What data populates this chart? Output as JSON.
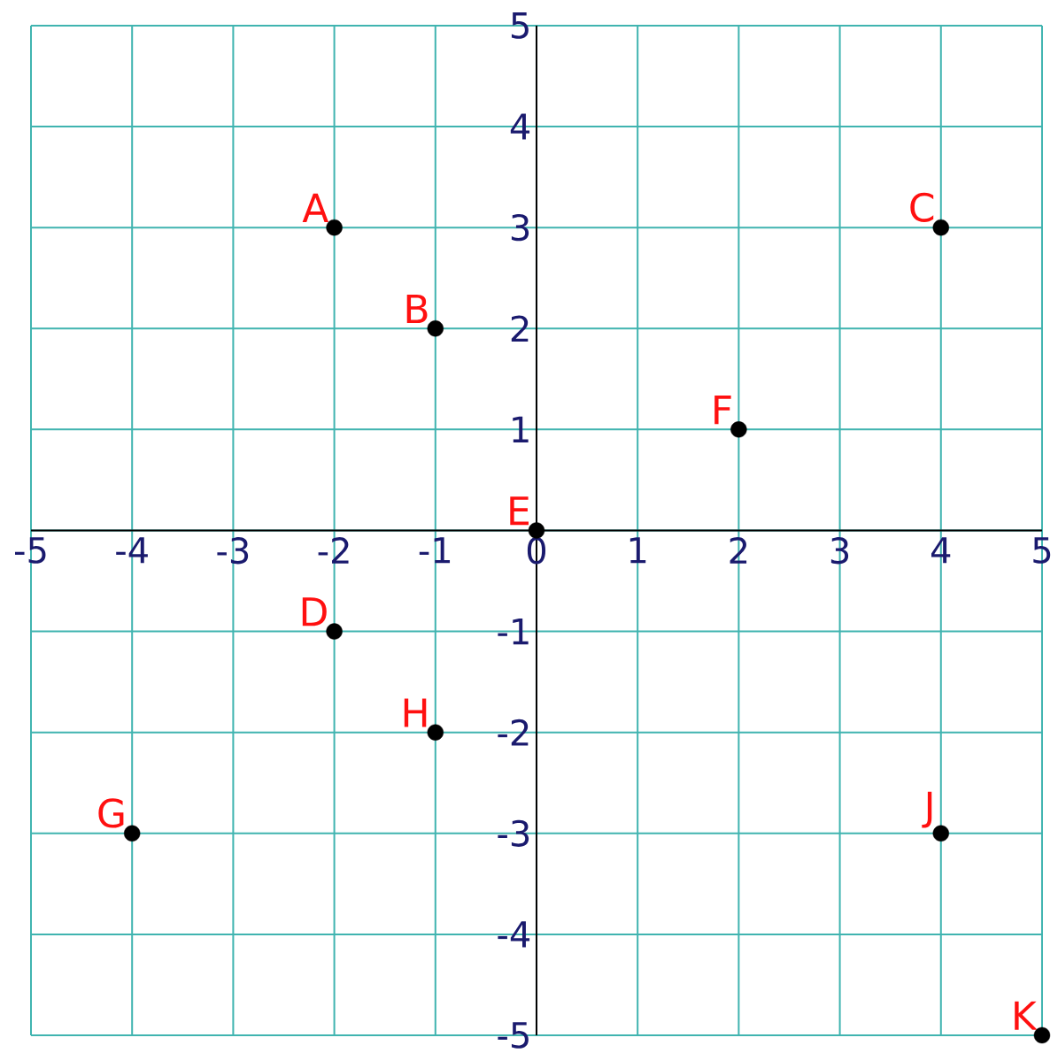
{
  "chart_data": {
    "type": "scatter",
    "x": [
      -2,
      -1,
      4,
      -2,
      0,
      2,
      -4,
      -1,
      4,
      5
    ],
    "values": [
      3,
      2,
      3,
      -1,
      0,
      1,
      -3,
      -2,
      -3,
      -5
    ],
    "color": "#000000",
    "grid": true,
    "xlim": [
      -5,
      5
    ],
    "ylim": [
      -5,
      5
    ],
    "xticks": [
      -5,
      -4,
      -3,
      -2,
      -1,
      0,
      1,
      2,
      3,
      4,
      5
    ],
    "yticks": [
      -5,
      -4,
      -3,
      -2,
      -1,
      {
        "value": 0,
        "label": null
      },
      1,
      2,
      3,
      4,
      5
    ],
    "annotations": [
      {
        "text": "A",
        "x": -2,
        "y": 3
      },
      {
        "text": "B",
        "x": -1,
        "y": 2
      },
      {
        "text": "C",
        "x": 4,
        "y": 3
      },
      {
        "text": "D",
        "x": -2,
        "y": -1
      },
      {
        "text": "E",
        "x": 0,
        "y": 0
      },
      {
        "text": "F",
        "x": 2,
        "y": 1
      },
      {
        "text": "G",
        "x": -4,
        "y": -3
      },
      {
        "text": "H",
        "x": -1,
        "y": -2
      },
      {
        "text": "J",
        "x": 4,
        "y": -3
      },
      {
        "text": "K",
        "x": 5,
        "y": -5
      }
    ]
  }
}
